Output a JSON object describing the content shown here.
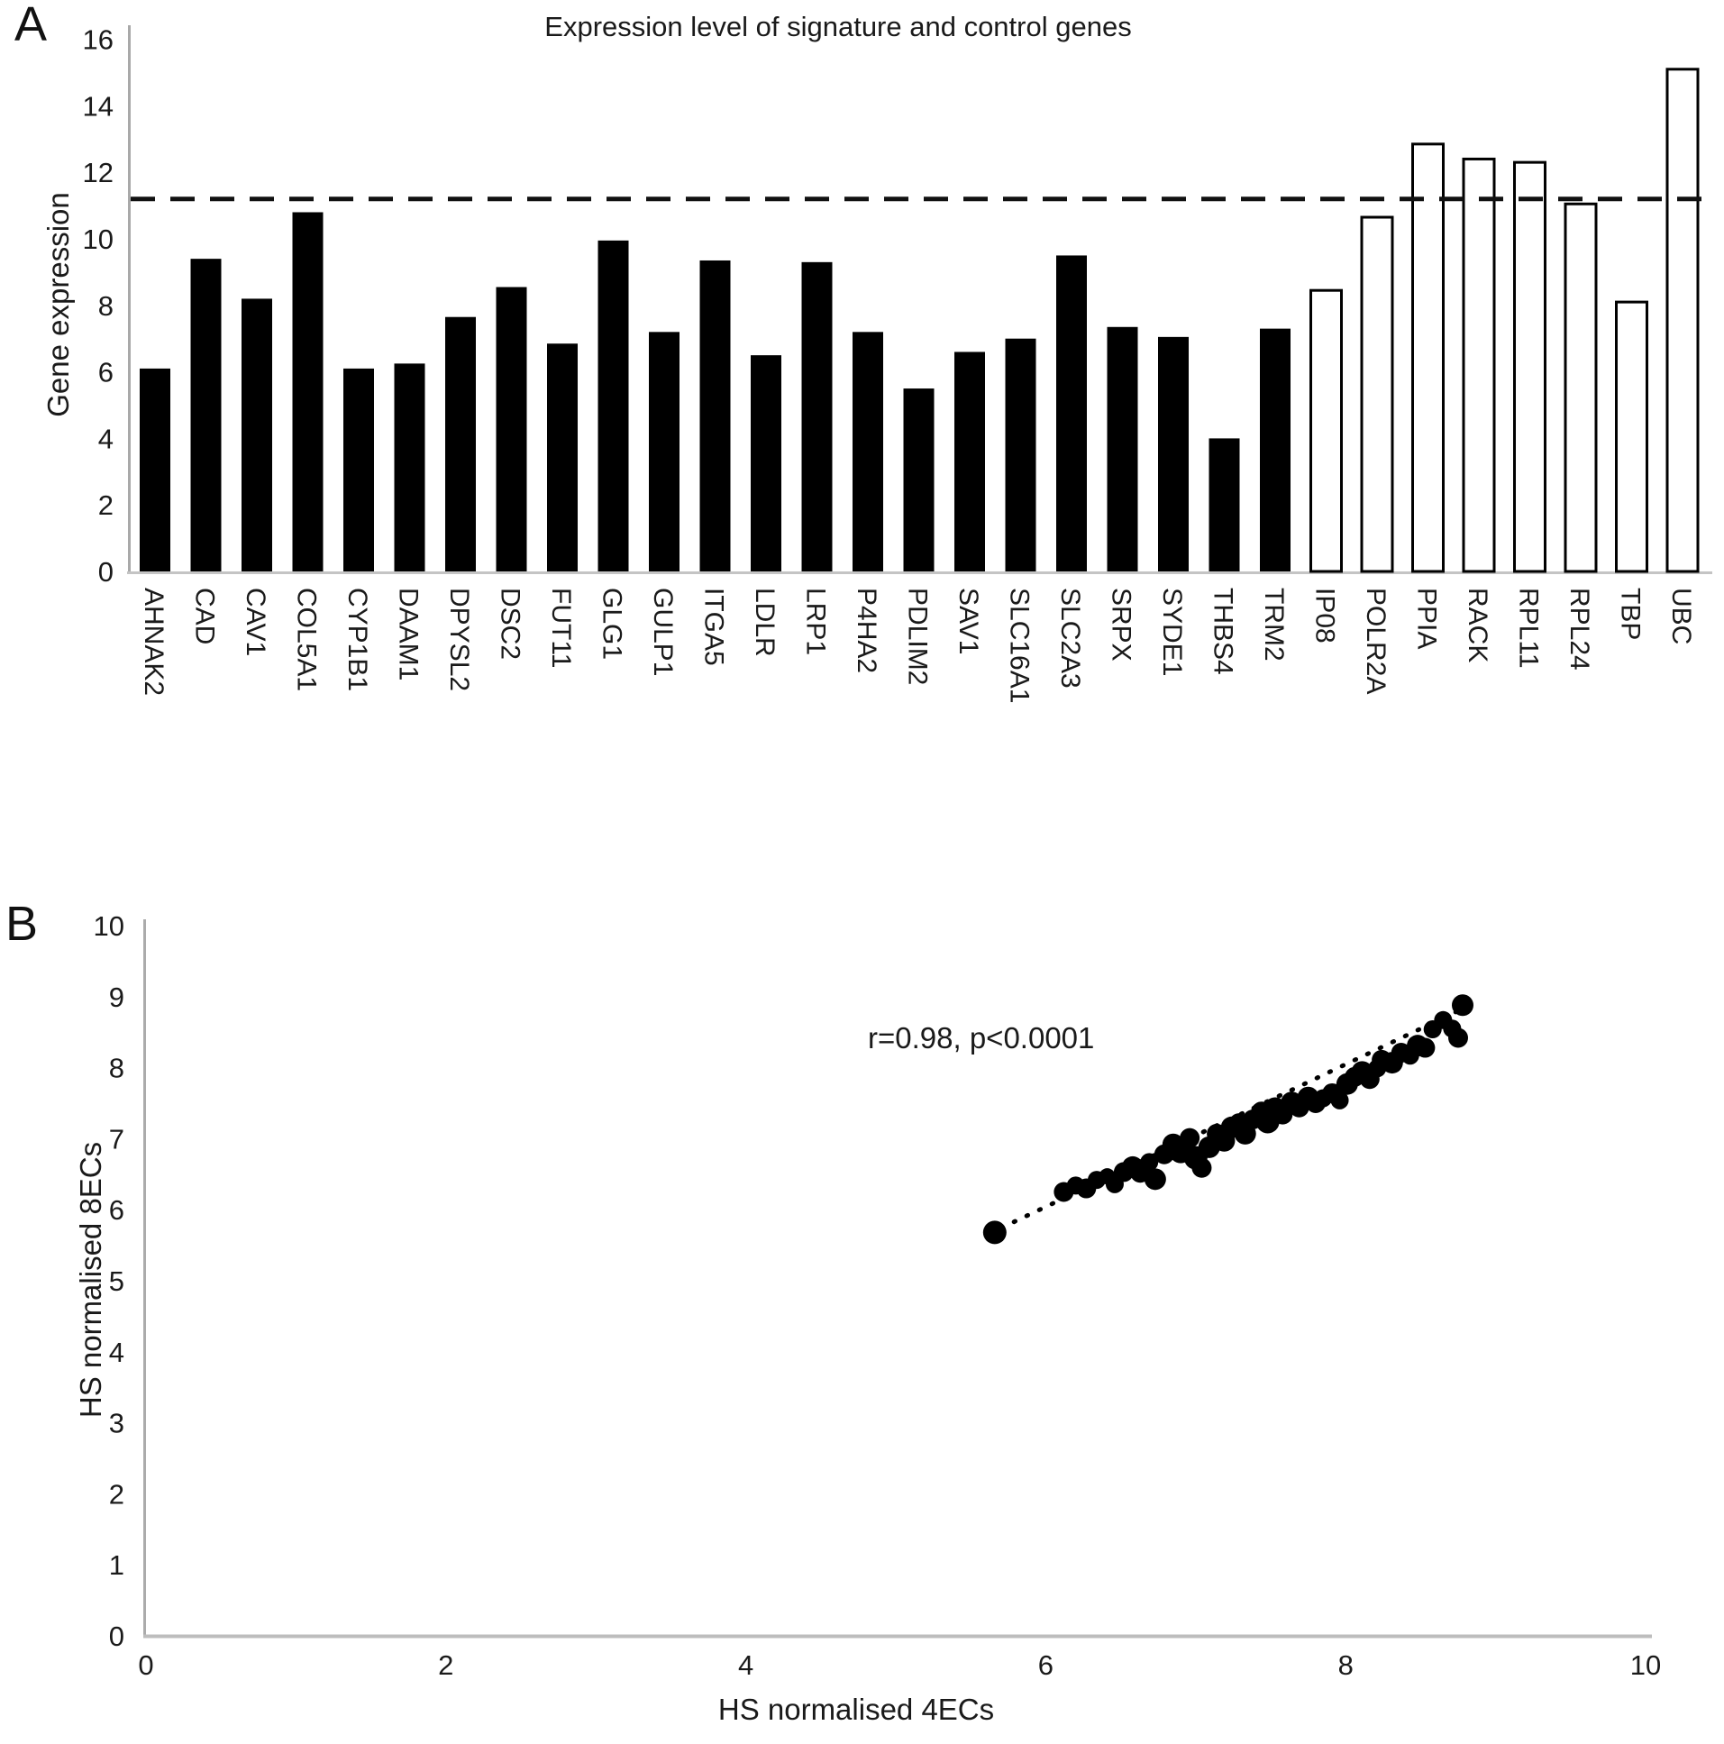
{
  "figure": {
    "panel_a_letter": "A",
    "panel_b_letter": "B"
  },
  "chart_data": [
    {
      "type": "bar",
      "panel": "A",
      "title": "Expression level of signature and control genes",
      "xlabel": "",
      "ylabel": "Gene expression",
      "ylim": [
        0,
        16
      ],
      "yticks": [
        0,
        2,
        4,
        6,
        8,
        10,
        12,
        14,
        16
      ],
      "grid": false,
      "legend_position": "none",
      "bar_fill_color": "#000000",
      "open_bar_fill_color": "#ffffff",
      "threshold_line": {
        "value": 11.2,
        "style": "dashed",
        "color": "#111111"
      },
      "categories": [
        "AHNAK2",
        "CAD",
        "CAV1",
        "COL5A1",
        "CYP1B1",
        "DAAM1",
        "DPYSL2",
        "DSC2",
        "FUT11",
        "GLG1",
        "GULP1",
        "ITGA5",
        "LDLR",
        "LRP1",
        "P4HA2",
        "PDLIM2",
        "SAV1",
        "SLC16A1",
        "SLC2A3",
        "SRPX",
        "SYDE1",
        "THBS4",
        "TRM2",
        "IP08",
        "POLR2A",
        "PPIA",
        "RACK",
        "RPL11",
        "RPL24",
        "TBP",
        "UBC"
      ],
      "values": [
        6.1,
        9.4,
        8.2,
        10.8,
        6.1,
        6.25,
        7.65,
        8.55,
        6.85,
        9.95,
        7.2,
        9.35,
        6.5,
        9.3,
        7.2,
        5.5,
        6.6,
        7.0,
        9.5,
        7.35,
        7.05,
        4.0,
        7.3,
        8.45,
        10.65,
        12.85,
        12.4,
        12.3,
        11.05,
        8.1,
        15.1
      ],
      "bar_styles": [
        "filled",
        "filled",
        "filled",
        "filled",
        "filled",
        "filled",
        "filled",
        "filled",
        "filled",
        "filled",
        "filled",
        "filled",
        "filled",
        "filled",
        "filled",
        "filled",
        "filled",
        "filled",
        "filled",
        "filled",
        "filled",
        "filled",
        "filled",
        "open",
        "open",
        "open",
        "open",
        "open",
        "open",
        "open",
        "open"
      ]
    },
    {
      "type": "scatter",
      "panel": "B",
      "xlabel": "HS normalised 4ECs",
      "ylabel": "HS normalised 8ECs",
      "xlim": [
        0,
        10
      ],
      "ylim": [
        0,
        10
      ],
      "xticks": [
        0,
        2,
        4,
        6,
        8,
        10
      ],
      "yticks": [
        0,
        1,
        2,
        3,
        4,
        5,
        6,
        7,
        8,
        9,
        10
      ],
      "grid": false,
      "annotation": "r=0.98, p<0.0001",
      "point_color": "#000000",
      "trendline": {
        "style": "dotted",
        "x_start": 5.62,
        "y_start": 5.66,
        "x_end": 8.85,
        "y_end": 8.9
      },
      "points": [
        [
          5.66,
          5.68,
          13
        ],
        [
          6.12,
          6.25,
          11
        ],
        [
          6.2,
          6.34,
          10
        ],
        [
          6.27,
          6.3,
          11
        ],
        [
          6.34,
          6.42,
          10
        ],
        [
          6.41,
          6.47,
          9
        ],
        [
          6.46,
          6.36,
          10
        ],
        [
          6.52,
          6.53,
          11
        ],
        [
          6.58,
          6.6,
          12
        ],
        [
          6.63,
          6.52,
          11
        ],
        [
          6.69,
          6.67,
          10
        ],
        [
          6.73,
          6.43,
          12
        ],
        [
          6.79,
          6.78,
          11
        ],
        [
          6.85,
          6.92,
          12
        ],
        [
          6.9,
          6.82,
          13
        ],
        [
          6.96,
          7.01,
          11
        ],
        [
          7.0,
          6.73,
          13
        ],
        [
          7.04,
          6.59,
          11
        ],
        [
          7.09,
          6.88,
          12
        ],
        [
          7.14,
          7.07,
          11
        ],
        [
          7.19,
          6.97,
          12
        ],
        [
          7.24,
          7.16,
          12
        ],
        [
          7.29,
          7.22,
          11
        ],
        [
          7.33,
          7.07,
          12
        ],
        [
          7.38,
          7.27,
          11
        ],
        [
          7.44,
          7.37,
          12
        ],
        [
          7.48,
          7.24,
          13
        ],
        [
          7.53,
          7.43,
          12
        ],
        [
          7.58,
          7.34,
          11
        ],
        [
          7.64,
          7.51,
          12
        ],
        [
          7.69,
          7.44,
          11
        ],
        [
          7.75,
          7.58,
          12
        ],
        [
          7.8,
          7.5,
          11
        ],
        [
          7.85,
          7.57,
          10
        ],
        [
          7.91,
          7.64,
          11
        ],
        [
          7.96,
          7.54,
          10
        ],
        [
          8.01,
          7.77,
          12
        ],
        [
          8.06,
          7.87,
          11
        ],
        [
          8.11,
          7.94,
          12
        ],
        [
          8.16,
          7.84,
          11
        ],
        [
          8.21,
          7.99,
          10
        ],
        [
          8.24,
          8.11,
          11
        ],
        [
          8.31,
          8.07,
          12
        ],
        [
          8.37,
          8.21,
          11
        ],
        [
          8.43,
          8.17,
          10
        ],
        [
          8.48,
          8.31,
          12
        ],
        [
          8.53,
          8.28,
          11
        ],
        [
          8.58,
          8.54,
          10
        ],
        [
          8.65,
          8.67,
          10
        ],
        [
          8.71,
          8.55,
          10
        ],
        [
          8.75,
          8.42,
          11
        ],
        [
          8.78,
          8.88,
          12
        ]
      ]
    }
  ]
}
